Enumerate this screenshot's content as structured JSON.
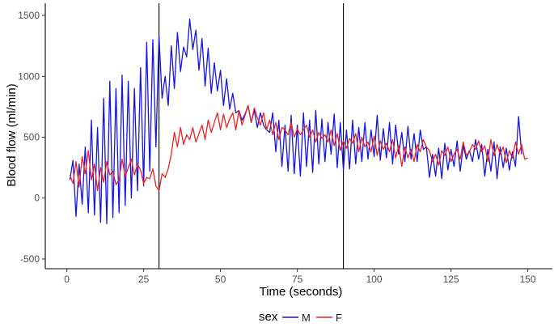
{
  "chart_data": {
    "type": "line",
    "xlabel": "Time (seconds)",
    "ylabel": "Blood flow (ml/min)",
    "xlim": [
      -7,
      158
    ],
    "ylim": [
      -580,
      1600
    ],
    "x_ticks": [
      0,
      25,
      50,
      75,
      100,
      125,
      150
    ],
    "x_tick_labels": [
      "0",
      "25",
      "50",
      "75",
      "100",
      "125",
      "150"
    ],
    "y_ticks": [
      -500,
      0,
      500,
      1000,
      1500
    ],
    "y_tick_labels": [
      "-500",
      "0",
      "500",
      "1000",
      "1500"
    ],
    "grid": false,
    "vlines": [
      30,
      90
    ],
    "legend": {
      "title": "sex",
      "position": "bottom",
      "entries": [
        "M",
        "F"
      ]
    },
    "colors": {
      "M": "#1515e0",
      "F": "#ee2222",
      "axis": "#000000",
      "vline": "#000000"
    },
    "series": [
      {
        "name": "M",
        "x": [
          1,
          2,
          3,
          4,
          5,
          6,
          7,
          8,
          9,
          10,
          11,
          12,
          13,
          14,
          15,
          16,
          17,
          18,
          19,
          20,
          21,
          22,
          23,
          24,
          25,
          26,
          27,
          28,
          29,
          30,
          31,
          32,
          33,
          34,
          35,
          36,
          37,
          38,
          39,
          40,
          41,
          42,
          43,
          44,
          45,
          46,
          47,
          48,
          49,
          50,
          51,
          52,
          53,
          54,
          55,
          56,
          57,
          58,
          59,
          60,
          61,
          62,
          63,
          64,
          65,
          66,
          67,
          68,
          69,
          70,
          71,
          72,
          73,
          74,
          75,
          76,
          77,
          78,
          79,
          80,
          81,
          82,
          83,
          84,
          85,
          86,
          87,
          88,
          89,
          90,
          91,
          92,
          93,
          94,
          95,
          96,
          97,
          98,
          99,
          100,
          101,
          102,
          103,
          104,
          105,
          106,
          107,
          108,
          109,
          110,
          111,
          112,
          113,
          114,
          115,
          116,
          117,
          118,
          119,
          120,
          121,
          122,
          123,
          124,
          125,
          126,
          127,
          128,
          129,
          130,
          131,
          132,
          133,
          134,
          135,
          136,
          137,
          138,
          139,
          140,
          141,
          142,
          143,
          144,
          145,
          146,
          147,
          148
        ],
        "values": [
          150,
          310,
          -150,
          280,
          -50,
          420,
          -120,
          640,
          -140,
          580,
          -200,
          820,
          -210,
          960,
          -160,
          900,
          -120,
          1010,
          -60,
          960,
          0,
          900,
          60,
          1070,
          100,
          1280,
          220,
          1300,
          420,
          1330,
          820,
          1000,
          760,
          1250,
          900,
          1360,
          1040,
          1240,
          1160,
          1470,
          1220,
          1380,
          1050,
          1310,
          920,
          1230,
          860,
          1110,
          880,
          1050,
          760,
          980,
          730,
          860,
          700,
          720,
          640,
          690,
          760,
          620,
          720,
          580,
          700,
          600,
          560,
          540,
          700,
          380,
          640,
          260,
          600,
          220,
          680,
          200,
          600,
          180,
          700,
          260,
          640,
          210,
          720,
          280,
          650,
          300,
          620,
          360,
          690,
          250,
          620,
          230,
          560,
          240,
          640,
          280,
          580,
          300,
          620,
          320,
          560,
          340,
          680,
          310,
          570,
          330,
          620,
          280,
          600,
          360,
          540,
          300,
          590,
          320,
          530,
          300,
          560,
          400,
          420,
          170,
          360,
          180,
          410,
          160,
          450,
          230,
          400,
          260,
          470,
          220,
          430,
          320,
          390,
          300,
          480,
          320,
          440,
          180,
          400,
          220,
          460,
          160,
          420,
          250,
          410,
          230,
          380,
          260,
          670,
          360
        ]
      },
      {
        "name": "F",
        "x": [
          1,
          2,
          3,
          4,
          5,
          6,
          7,
          8,
          9,
          10,
          11,
          12,
          13,
          14,
          15,
          16,
          17,
          18,
          19,
          20,
          21,
          22,
          23,
          24,
          25,
          26,
          27,
          28,
          29,
          30,
          31,
          32,
          33,
          34,
          35,
          36,
          37,
          38,
          39,
          40,
          41,
          42,
          43,
          44,
          45,
          46,
          47,
          48,
          49,
          50,
          51,
          52,
          53,
          54,
          55,
          56,
          57,
          58,
          59,
          60,
          61,
          62,
          63,
          64,
          65,
          66,
          67,
          68,
          69,
          70,
          71,
          72,
          73,
          74,
          75,
          76,
          77,
          78,
          79,
          80,
          81,
          82,
          83,
          84,
          85,
          86,
          87,
          88,
          89,
          90,
          91,
          92,
          93,
          94,
          95,
          96,
          97,
          98,
          99,
          100,
          101,
          102,
          103,
          104,
          105,
          106,
          107,
          108,
          109,
          110,
          111,
          112,
          113,
          114,
          115,
          116,
          117,
          118,
          119,
          120,
          121,
          122,
          123,
          124,
          125,
          126,
          127,
          128,
          129,
          130,
          131,
          132,
          133,
          134,
          135,
          136,
          137,
          138,
          139,
          140,
          141,
          142,
          143,
          144,
          145,
          146,
          147,
          148,
          149,
          150
        ],
        "values": [
          190,
          120,
          300,
          90,
          340,
          200,
          390,
          150,
          280,
          60,
          250,
          130,
          300,
          190,
          220,
          110,
          150,
          320,
          180,
          250,
          320,
          190,
          280,
          230,
          120,
          170,
          160,
          240,
          100,
          60,
          200,
          170,
          240,
          360,
          540,
          420,
          580,
          440,
          520,
          480,
          580,
          460,
          530,
          600,
          480,
          640,
          540,
          620,
          700,
          560,
          690,
          580,
          650,
          700,
          560,
          720,
          600,
          680,
          760,
          620,
          740,
          660,
          600,
          700,
          560,
          640,
          520,
          620,
          480,
          580,
          560,
          520,
          620,
          500,
          570,
          520,
          560,
          600,
          500,
          560,
          460,
          540,
          490,
          520,
          460,
          560,
          430,
          530,
          390,
          470,
          410,
          490,
          450,
          530,
          380,
          500,
          420,
          460,
          380,
          510,
          350,
          470,
          400,
          450,
          380,
          480,
          330,
          430,
          260,
          420,
          330,
          400,
          300,
          440,
          380,
          480,
          420,
          390,
          300,
          360,
          270,
          390,
          350,
          420,
          300,
          360,
          400,
          320,
          460,
          350,
          380,
          440,
          400,
          470,
          380,
          430,
          300,
          480,
          350,
          440,
          360,
          420,
          290,
          390,
          330,
          460,
          360,
          440,
          320,
          330
        ]
      }
    ]
  }
}
